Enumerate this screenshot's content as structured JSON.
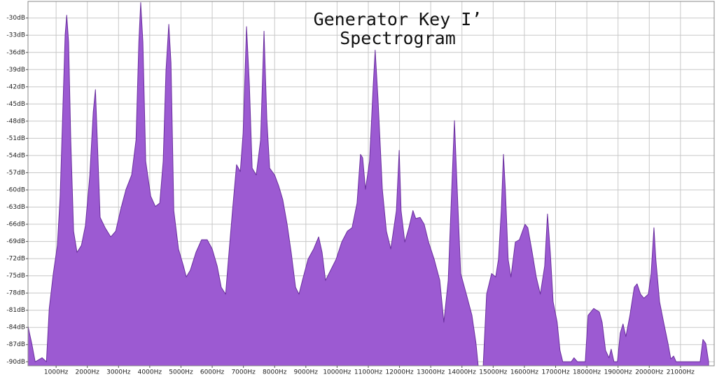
{
  "chart_data": {
    "type": "area",
    "title": [
      "Generator Key I’",
      "Spectrogram"
    ],
    "color": "#9c5ad2",
    "line_color": "#6a2f9e",
    "grid": true,
    "xlim": [
      100,
      22080
    ],
    "ylim": [
      -90.7,
      -27.1
    ],
    "xticks": [
      {
        "value": 1000,
        "label": "1000Hz"
      },
      {
        "value": 2000,
        "label": "2000Hz"
      },
      {
        "value": 3000,
        "label": "3000Hz"
      },
      {
        "value": 4000,
        "label": "4000Hz"
      },
      {
        "value": 5000,
        "label": "5000Hz"
      },
      {
        "value": 6000,
        "label": "6000Hz"
      },
      {
        "value": 7000,
        "label": "7000Hz"
      },
      {
        "value": 8000,
        "label": "8000Hz"
      },
      {
        "value": 9000,
        "label": "9000Hz"
      },
      {
        "value": 10000,
        "label": "10000Hz"
      },
      {
        "value": 11000,
        "label": "11000Hz"
      },
      {
        "value": 12000,
        "label": "12000Hz"
      },
      {
        "value": 13000,
        "label": "13000Hz"
      },
      {
        "value": 14000,
        "label": "14000Hz"
      },
      {
        "value": 15000,
        "label": "15000Hz"
      },
      {
        "value": 16000,
        "label": "16000Hz"
      },
      {
        "value": 17000,
        "label": "17000Hz"
      },
      {
        "value": 18000,
        "label": "18000Hz"
      },
      {
        "value": 19000,
        "label": "19000Hz"
      },
      {
        "value": 20000,
        "label": "20000Hz"
      },
      {
        "value": 21000,
        "label": "21000Hz"
      }
    ],
    "yticks": [
      {
        "value": -30,
        "label": "-30dB"
      },
      {
        "value": -33,
        "label": "-33dB"
      },
      {
        "value": -36,
        "label": "-36dB"
      },
      {
        "value": -39,
        "label": "-39dB"
      },
      {
        "value": -42,
        "label": "-42dB"
      },
      {
        "value": -45,
        "label": "-45dB"
      },
      {
        "value": -48,
        "label": "-48dB"
      },
      {
        "value": -51,
        "label": "-51dB"
      },
      {
        "value": -54,
        "label": "-54dB"
      },
      {
        "value": -57,
        "label": "-57dB"
      },
      {
        "value": -60,
        "label": "-60dB"
      },
      {
        "value": -63,
        "label": "-63dB"
      },
      {
        "value": -66,
        "label": "-66dB"
      },
      {
        "value": -69,
        "label": "-69dB"
      },
      {
        "value": -72,
        "label": "-72dB"
      },
      {
        "value": -75,
        "label": "-75dB"
      },
      {
        "value": -78,
        "label": "-78dB"
      },
      {
        "value": -81,
        "label": "-81dB"
      },
      {
        "value": -84,
        "label": "-84dB"
      },
      {
        "value": -87,
        "label": "-87dB"
      },
      {
        "value": -90,
        "label": "-90dB"
      }
    ],
    "x": [
      100,
      220,
      330,
      550,
      690,
      780,
      910,
      1040,
      1130,
      1220,
      1290,
      1340,
      1400,
      1470,
      1560,
      1670,
      1810,
      1940,
      2080,
      2190,
      2260,
      2320,
      2410,
      2570,
      2750,
      2910,
      3060,
      3240,
      3420,
      3560,
      3650,
      3710,
      3780,
      3870,
      4030,
      4180,
      4320,
      4430,
      4520,
      4610,
      4680,
      4770,
      4920,
      5080,
      5170,
      5300,
      5480,
      5660,
      5840,
      6000,
      6160,
      6290,
      6430,
      6520,
      6650,
      6780,
      6900,
      6990,
      7100,
      7190,
      7280,
      7410,
      7550,
      7660,
      7750,
      7840,
      8000,
      8130,
      8260,
      8400,
      8530,
      8670,
      8780,
      8890,
      9070,
      9250,
      9410,
      9520,
      9630,
      9740,
      9970,
      10150,
      10330,
      10480,
      10640,
      10750,
      10820,
      10910,
      11040,
      11160,
      11220,
      11310,
      11450,
      11580,
      11720,
      11900,
      11990,
      12050,
      12170,
      12300,
      12430,
      12520,
      12660,
      12790,
      12930,
      13110,
      13290,
      13420,
      13560,
      13690,
      13760,
      13820,
      13960,
      14140,
      14320,
      14450,
      14520,
      14680,
      14790,
      14950,
      15080,
      15170,
      15260,
      15330,
      15390,
      15480,
      15570,
      15710,
      15840,
      16020,
      16110,
      16250,
      16380,
      16510,
      16650,
      16740,
      16830,
      16920,
      17050,
      17140,
      17230,
      17500,
      17590,
      17700,
      17950,
      18040,
      18220,
      18400,
      18490,
      18600,
      18710,
      18780,
      18870,
      18980,
      19070,
      19160,
      19250,
      19380,
      19520,
      19610,
      19720,
      19830,
      19970,
      20060,
      20150,
      20210,
      20330,
      20460,
      20600,
      20690,
      20780,
      20860,
      21630,
      21720,
      21810,
      21900
    ],
    "values": [
      -83.8,
      -86.8,
      -90.0,
      -89.3,
      -90.0,
      -80.7,
      -74.6,
      -69.7,
      -61.1,
      -45.2,
      -32.9,
      -29.5,
      -34.2,
      -51.3,
      -67.2,
      -70.9,
      -69.7,
      -66.2,
      -57.4,
      -46.4,
      -42.5,
      -51.3,
      -64.8,
      -66.6,
      -68.2,
      -67.2,
      -63.6,
      -59.9,
      -57.4,
      -51.3,
      -34.2,
      -27.3,
      -34.2,
      -55.0,
      -61.1,
      -62.9,
      -62.3,
      -55.0,
      -39.1,
      -31.1,
      -37.8,
      -63.6,
      -70.3,
      -73.3,
      -75.2,
      -74.0,
      -70.9,
      -68.7,
      -68.7,
      -70.3,
      -73.3,
      -77.0,
      -78.2,
      -72.1,
      -63.6,
      -55.6,
      -56.8,
      -50.1,
      -31.5,
      -41.5,
      -56.2,
      -57.4,
      -51.3,
      -32.3,
      -47.6,
      -56.2,
      -57.4,
      -59.3,
      -61.7,
      -66.0,
      -70.9,
      -77.0,
      -78.2,
      -75.8,
      -72.1,
      -70.3,
      -68.2,
      -70.9,
      -75.8,
      -74.6,
      -72.1,
      -69.1,
      -67.2,
      -66.6,
      -62.3,
      -53.8,
      -54.4,
      -59.9,
      -55.0,
      -41.5,
      -35.6,
      -44.0,
      -59.9,
      -67.2,
      -70.3,
      -63.6,
      -53.1,
      -63.6,
      -69.1,
      -66.6,
      -63.6,
      -65.0,
      -64.8,
      -66.0,
      -69.1,
      -72.1,
      -75.8,
      -83.1,
      -75.8,
      -57.4,
      -47.9,
      -56.2,
      -74.6,
      -78.2,
      -81.9,
      -86.8,
      -90.7,
      -90.7,
      -78.2,
      -74.6,
      -75.2,
      -72.1,
      -63.6,
      -53.8,
      -59.9,
      -72.1,
      -75.2,
      -69.1,
      -68.7,
      -66.0,
      -66.6,
      -70.9,
      -75.2,
      -78.2,
      -73.3,
      -64.2,
      -70.9,
      -79.5,
      -83.1,
      -88.0,
      -90.0,
      -90.0,
      -89.3,
      -90.0,
      -90.0,
      -81.9,
      -80.7,
      -81.3,
      -83.1,
      -88.0,
      -89.3,
      -87.8,
      -90.0,
      -90.0,
      -85.0,
      -83.4,
      -85.6,
      -81.9,
      -77.0,
      -76.4,
      -78.2,
      -78.9,
      -78.2,
      -74.6,
      -66.6,
      -72.1,
      -79.5,
      -83.1,
      -86.8,
      -89.5,
      -89.0,
      -90.0,
      -90.0,
      -86.1,
      -86.8,
      -90.0
    ]
  }
}
